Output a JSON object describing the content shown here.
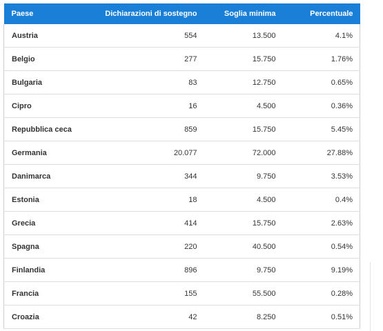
{
  "table": {
    "header": [
      "Paese",
      "Dichiarazioni di sostegno",
      "Soglia minima",
      "Percentuale"
    ],
    "rows": [
      [
        "Austria",
        "554",
        "13.500",
        "4.1%"
      ],
      [
        "Belgio",
        "277",
        "15.750",
        "1.76%"
      ],
      [
        "Bulgaria",
        "83",
        "12.750",
        "0.65%"
      ],
      [
        "Cipro",
        "16",
        "4.500",
        "0.36%"
      ],
      [
        "Repubblica ceca",
        "859",
        "15.750",
        "5.45%"
      ],
      [
        "Germania",
        "20.077",
        "72.000",
        "27.88%"
      ],
      [
        "Danimarca",
        "344",
        "9.750",
        "3.53%"
      ],
      [
        "Estonia",
        "18",
        "4.500",
        "0.4%"
      ],
      [
        "Grecia",
        "414",
        "15.750",
        "2.63%"
      ],
      [
        "Spagna",
        "220",
        "40.500",
        "0.54%"
      ],
      [
        "Finlandia",
        "896",
        "9.750",
        "9.19%"
      ],
      [
        "Francia",
        "155",
        "55.500",
        "0.28%"
      ],
      [
        "Croazia",
        "42",
        "8.250",
        "0.51%"
      ]
    ]
  }
}
